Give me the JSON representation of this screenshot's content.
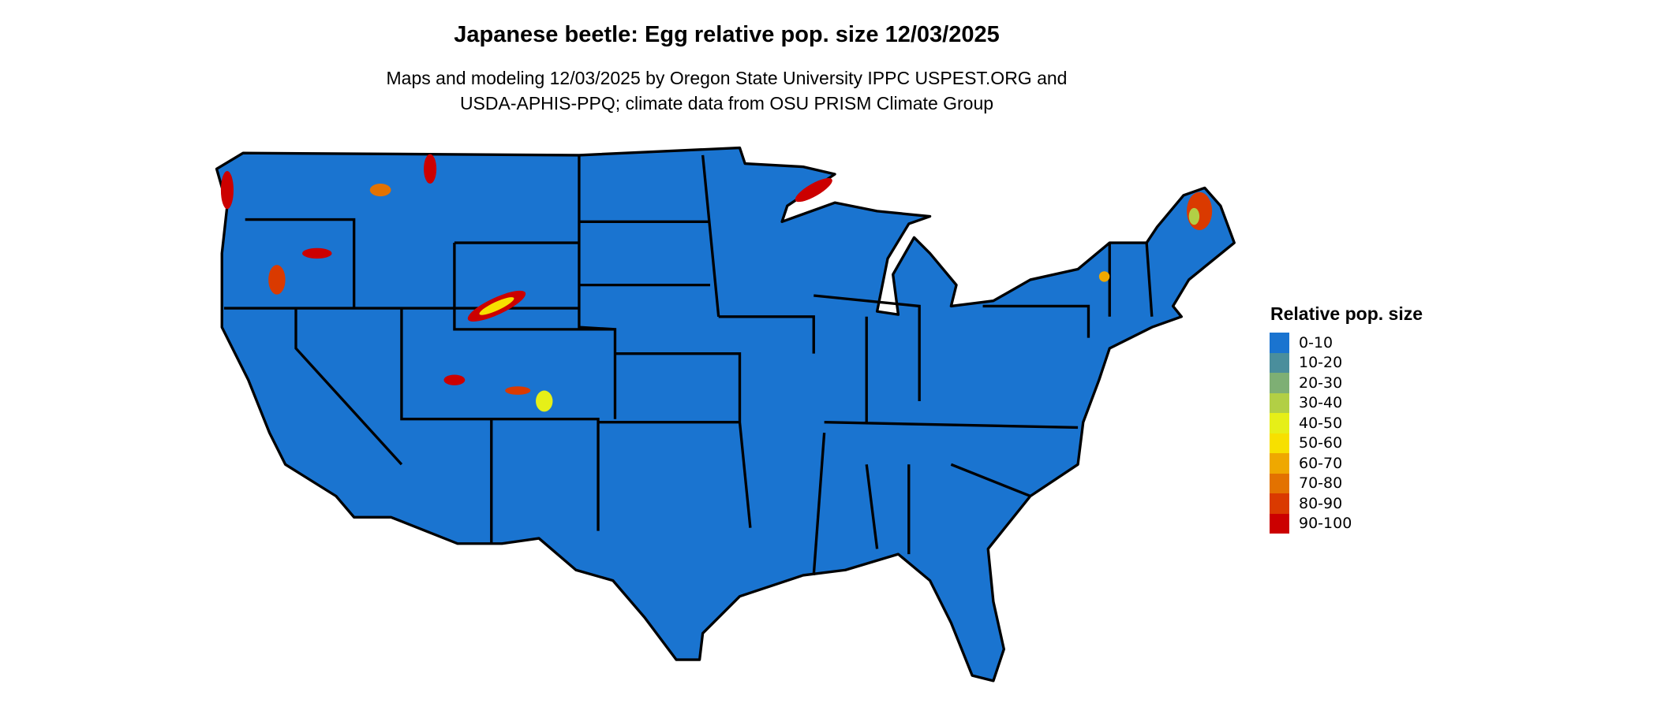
{
  "title": "Japanese beetle: Egg relative pop. size 12/03/2025",
  "subtitle_line1": "Maps and modeling 12/03/2025 by Oregon State University IPPC USPEST.ORG and",
  "subtitle_line2": "USDA-APHIS-PPQ; climate data from OSU PRISM Climate Group",
  "chart_data": {
    "type": "map",
    "region": "Contiguous United States",
    "dominant_class": "0-10",
    "legend": {
      "title": "Relative pop. size",
      "placement": "right",
      "items": [
        {
          "label": "0-10",
          "color": "#1a74d0"
        },
        {
          "label": "10-20",
          "color": "#4a8e9c"
        },
        {
          "label": "20-30",
          "color": "#7eaf74"
        },
        {
          "label": "30-40",
          "color": "#b2cf45"
        },
        {
          "label": "40-50",
          "color": "#e6ef18"
        },
        {
          "label": "50-60",
          "color": "#f7e000"
        },
        {
          "label": "60-70",
          "color": "#efa800"
        },
        {
          "label": "70-80",
          "color": "#e37200"
        },
        {
          "label": "80-90",
          "color": "#da3a00"
        },
        {
          "label": "90-100",
          "color": "#cc0000"
        }
      ]
    }
  }
}
